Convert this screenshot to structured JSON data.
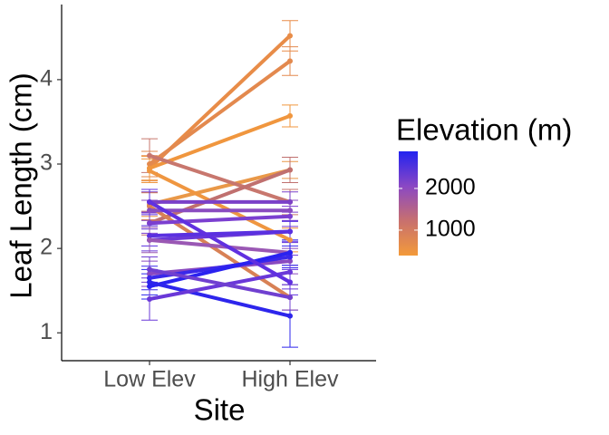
{
  "chart_data": {
    "type": "line",
    "x_label": "Site",
    "y_label": "Leaf Length (cm)",
    "categories": [
      "Low Elev",
      "High Elev"
    ],
    "ylim": [
      0.67,
      4.89
    ],
    "yticks": [
      1,
      2,
      3,
      4
    ],
    "colorbar": {
      "title": "Elevation (m)",
      "lim": [
        390,
        2890
      ],
      "ticks": [
        2000,
        1000
      ],
      "colors": [
        "#2222f0",
        "#8a48c4",
        "#c8706e",
        "#f39a3a"
      ]
    },
    "series": [
      {
        "color": "#e88c48",
        "values": [
          2.95,
          4.52
        ],
        "errors": [
          0.15,
          0.18
        ]
      },
      {
        "color": "#e3894e",
        "values": [
          3.0,
          4.22
        ],
        "errors": [
          0.15,
          0.17
        ]
      },
      {
        "color": "#f0963e",
        "values": [
          2.95,
          3.57
        ],
        "errors": [
          0.14,
          0.13
        ]
      },
      {
        "color": "#e99848",
        "values": [
          2.52,
          2.93
        ],
        "errors": [
          0.14,
          0.1
        ]
      },
      {
        "color": "#c8776e",
        "values": [
          3.1,
          2.55
        ],
        "errors": [
          0.2,
          0.15
        ]
      },
      {
        "color": "#ef9640",
        "values": [
          2.92,
          2.1
        ],
        "errors": [
          0.14,
          0.14
        ]
      },
      {
        "color": "#c0706f",
        "values": [
          2.3,
          2.93
        ],
        "errors": [
          0.14,
          0.15
        ]
      },
      {
        "color": "#d88155",
        "values": [
          2.5,
          1.42
        ],
        "errors": [
          0.16,
          0.15
        ]
      },
      {
        "color": "#7b40c8",
        "values": [
          2.55,
          2.55
        ],
        "errors": [
          0.12,
          0.12
        ]
      },
      {
        "color": "#8a4cc0",
        "values": [
          2.45,
          2.45
        ],
        "errors": [
          0.12,
          0.12
        ]
      },
      {
        "color": "#7b3fd0",
        "values": [
          2.3,
          2.38
        ],
        "errors": [
          0.12,
          0.12
        ]
      },
      {
        "color": "#6a38d8",
        "values": [
          2.1,
          2.2
        ],
        "errors": [
          0.13,
          0.13
        ]
      },
      {
        "color": "#5a30e0",
        "values": [
          2.15,
          2.2
        ],
        "errors": [
          0.12,
          0.12
        ]
      },
      {
        "color": "#9a58b4",
        "values": [
          2.1,
          1.95
        ],
        "errors": [
          0.15,
          0.15
        ]
      },
      {
        "color": "#8a4ac0",
        "values": [
          1.7,
          1.85
        ],
        "errors": [
          0.15,
          0.15
        ]
      },
      {
        "color": "#3a28ea",
        "values": [
          1.65,
          1.9
        ],
        "errors": [
          0.14,
          0.13
        ]
      },
      {
        "color": "#2a22f0",
        "values": [
          1.55,
          1.95
        ],
        "errors": [
          0.15,
          0.15
        ]
      },
      {
        "color": "#2d25ec",
        "values": [
          1.6,
          1.2
        ],
        "errors": [
          0.15,
          0.37
        ]
      },
      {
        "color": "#6a38d8",
        "values": [
          1.4,
          1.72
        ],
        "errors": [
          0.25,
          0.2
        ]
      },
      {
        "color": "#7040d0",
        "values": [
          1.75,
          1.42
        ],
        "errors": [
          0.15,
          0.15
        ]
      },
      {
        "color": "#6030e0",
        "values": [
          2.55,
          1.6
        ],
        "errors": [
          0.15,
          0.15
        ]
      }
    ]
  }
}
